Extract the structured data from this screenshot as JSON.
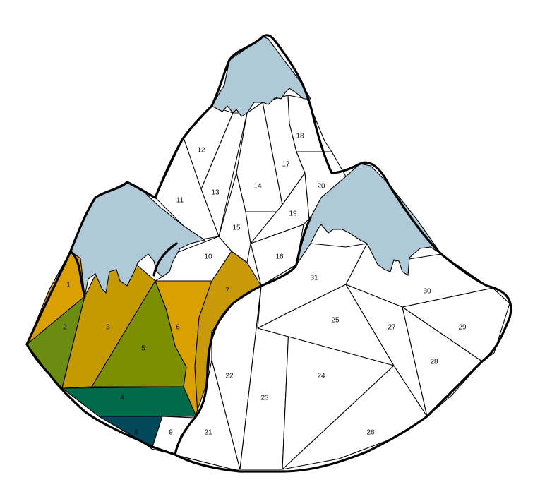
{
  "palette": {
    "c1": "#daa000",
    "c2": "#6b8c10",
    "c3": "#c49a00",
    "c4": "#006a4a",
    "c5": "#7a9000",
    "c6": "#daa000",
    "c7": "#c89a0a",
    "c8": "#00485a",
    "blank": "#ffffff",
    "snow": "#b0c9d9"
  },
  "regions": [
    {
      "num": "1",
      "fill": "c1"
    },
    {
      "num": "2",
      "fill": "c2"
    },
    {
      "num": "3",
      "fill": "c3"
    },
    {
      "num": "4",
      "fill": "c4"
    },
    {
      "num": "5",
      "fill": "c5"
    },
    {
      "num": "6",
      "fill": "c6"
    },
    {
      "num": "7",
      "fill": "c7"
    },
    {
      "num": "8",
      "fill": "c8"
    },
    {
      "num": "9",
      "fill": "blank"
    },
    {
      "num": "10",
      "fill": "blank"
    },
    {
      "num": "11",
      "fill": "blank"
    },
    {
      "num": "12",
      "fill": "blank"
    },
    {
      "num": "13",
      "fill": "blank"
    },
    {
      "num": "14",
      "fill": "blank"
    },
    {
      "num": "15",
      "fill": "blank"
    },
    {
      "num": "16",
      "fill": "blank"
    },
    {
      "num": "17",
      "fill": "blank"
    },
    {
      "num": "18",
      "fill": "blank"
    },
    {
      "num": "19",
      "fill": "blank"
    },
    {
      "num": "20",
      "fill": "blank"
    },
    {
      "num": "21",
      "fill": "blank"
    },
    {
      "num": "22",
      "fill": "blank"
    },
    {
      "num": "23",
      "fill": "blank"
    },
    {
      "num": "24",
      "fill": "blank"
    },
    {
      "num": "25",
      "fill": "blank"
    },
    {
      "num": "26",
      "fill": "blank"
    },
    {
      "num": "27",
      "fill": "blank"
    },
    {
      "num": "28",
      "fill": "blank"
    },
    {
      "num": "29",
      "fill": "blank"
    },
    {
      "num": "30",
      "fill": "blank"
    },
    {
      "num": "31",
      "fill": "blank"
    }
  ]
}
